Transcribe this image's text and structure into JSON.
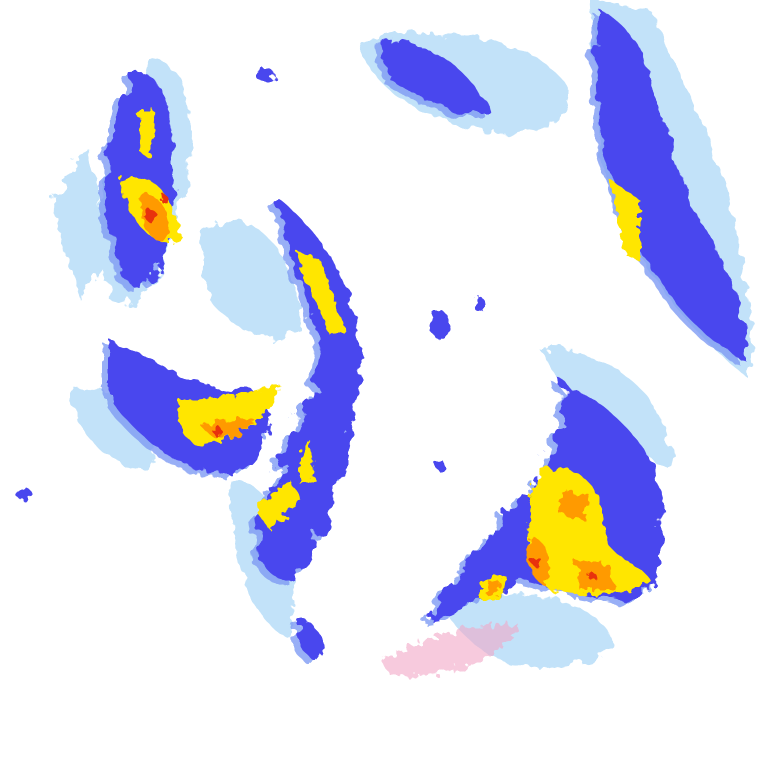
{
  "product": "weather-radar-reflectivity",
  "colors": {
    "background": "#ffffff",
    "very_light": "#b8def8",
    "light": "#7f9cf4",
    "moderate": "#4a46ee",
    "heavy": "#ffe600",
    "intense": "#ff9a00",
    "extreme": "#e8300a",
    "clutter": "#f2a8c8"
  }
}
